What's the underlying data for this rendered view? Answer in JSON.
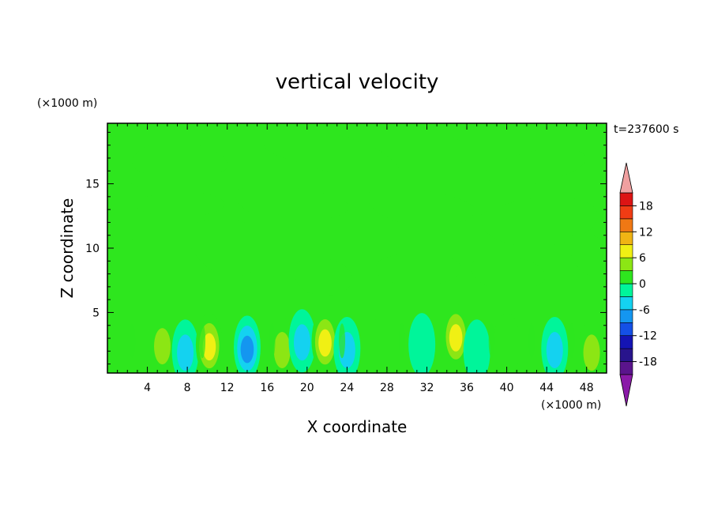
{
  "chart_data": {
    "type": "heatmap",
    "title": "vertical velocity",
    "xlabel": "X coordinate",
    "ylabel": "Z coordinate",
    "x_unit": "(×1000 m)",
    "y_unit": "(×1000 m)",
    "time_label": "t=237600 s",
    "xlim": [
      0,
      50
    ],
    "ylim": [
      0.3,
      19.7
    ],
    "x_ticks": [
      4,
      8,
      12,
      16,
      20,
      24,
      28,
      32,
      36,
      40,
      44,
      48
    ],
    "y_ticks": [
      5,
      10,
      15
    ],
    "background_value": 0,
    "colorbar": {
      "levels": [
        -21,
        -18,
        -15,
        -12,
        -9,
        -6,
        -3,
        0,
        3,
        6,
        9,
        12,
        15,
        18,
        21
      ],
      "tick_labels": [
        "18",
        "12",
        "6",
        "0",
        "-6",
        "-12",
        "-18"
      ],
      "tick_values": [
        18,
        12,
        6,
        0,
        -6,
        -12,
        -18
      ],
      "colors": [
        "#8a1aa8",
        "#5a148c",
        "#28148c",
        "#1414b4",
        "#1450e6",
        "#1496f0",
        "#14d2f0",
        "#00f59a",
        "#2ee61e",
        "#8ce614",
        "#f0f014",
        "#f0b414",
        "#f07814",
        "#f03c14",
        "#dc1414",
        "#f0a0a0"
      ],
      "over_color": "#f0a0a0",
      "under_color": "#8a1aa8"
    },
    "features": [
      {
        "x": 5.5,
        "z": 2.5,
        "value": 6
      },
      {
        "x": 7.8,
        "z": 2.0,
        "value": -4
      },
      {
        "x": 10.2,
        "z": 2.5,
        "value": 7
      },
      {
        "x": 14.0,
        "z": 2.3,
        "value": -9
      },
      {
        "x": 17.5,
        "z": 2.2,
        "value": 5
      },
      {
        "x": 19.5,
        "z": 2.8,
        "value": -5
      },
      {
        "x": 21.8,
        "z": 2.8,
        "value": 9
      },
      {
        "x": 24.0,
        "z": 2.2,
        "value": -4
      },
      {
        "x": 27.0,
        "z": 2.0,
        "value": 3
      },
      {
        "x": 31.5,
        "z": 2.5,
        "value": -3
      },
      {
        "x": 34.9,
        "z": 3.2,
        "value": 9
      },
      {
        "x": 37.0,
        "z": 2.0,
        "value": -3
      },
      {
        "x": 40.0,
        "z": 2.5,
        "value": 3
      },
      {
        "x": 44.8,
        "z": 2.2,
        "value": -4
      },
      {
        "x": 48.5,
        "z": 2.0,
        "value": 5
      }
    ]
  }
}
